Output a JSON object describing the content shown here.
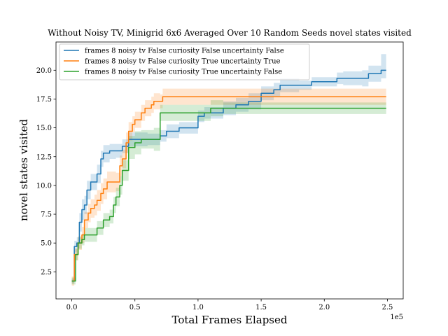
{
  "chart_data": {
    "type": "line",
    "title": "Without Noisy TV, Minigrid 6x6 Averaged Over 10 Random Seeds novel states visited",
    "xlabel": "Total Frames Elapsed",
    "ylabel": "novel states visited",
    "x_offset_label": "1e5",
    "xlim": [
      -0.125,
      2.625
    ],
    "ylim": [
      0.15,
      22.45
    ],
    "x_ticks": [
      0.0,
      0.5,
      1.0,
      1.5,
      2.0,
      2.5
    ],
    "x_tick_labels": [
      "0.0",
      "0.5",
      "1.0",
      "1.5",
      "2.0",
      "2.5"
    ],
    "y_ticks": [
      2.5,
      5.0,
      7.5,
      10.0,
      12.5,
      15.0,
      17.5,
      20.0
    ],
    "y_tick_labels": [
      "2.5",
      "5.0",
      "7.5",
      "10.0",
      "12.5",
      "15.0",
      "17.5",
      "20.0"
    ],
    "grid": false,
    "legend_position": "top-left",
    "series": [
      {
        "name": "frames 8 noisy tv False curiosity False uncertainty False",
        "color": "#1f77b4",
        "x": [
          0.0,
          0.02,
          0.04,
          0.06,
          0.08,
          0.1,
          0.12,
          0.15,
          0.2,
          0.23,
          0.25,
          0.3,
          0.35,
          0.4,
          0.45,
          0.5,
          0.6,
          0.7,
          0.75,
          0.8,
          0.85,
          1.0,
          1.05,
          1.1,
          1.2,
          1.3,
          1.4,
          1.5,
          1.6,
          1.65,
          1.8,
          1.9,
          2.0,
          2.1,
          2.15,
          2.2,
          2.3,
          2.35,
          2.4,
          2.45,
          2.49
        ],
        "y": [
          1.7,
          4.7,
          5.0,
          6.8,
          7.9,
          8.3,
          9.6,
          10.3,
          11.0,
          12.3,
          12.8,
          13.0,
          13.0,
          13.4,
          14.0,
          14.0,
          14.0,
          14.3,
          14.7,
          14.7,
          15.0,
          16.0,
          16.3,
          16.3,
          16.7,
          17.0,
          17.3,
          18.0,
          18.3,
          18.7,
          18.7,
          19.0,
          19.0,
          19.3,
          19.3,
          19.3,
          19.3,
          19.7,
          19.7,
          20.0,
          20.0
        ],
        "lower": [
          1.5,
          4.2,
          4.5,
          6.0,
          7.0,
          7.5,
          8.8,
          9.6,
          10.2,
          11.6,
          12.0,
          12.3,
          12.4,
          12.8,
          13.4,
          13.4,
          13.5,
          13.8,
          14.1,
          14.1,
          14.5,
          15.5,
          15.8,
          15.8,
          16.1,
          16.4,
          16.6,
          17.4,
          17.7,
          18.1,
          18.3,
          18.6,
          18.6,
          18.8,
          18.7,
          18.7,
          18.6,
          19.0,
          19.0,
          19.3,
          19.3
        ],
        "upper": [
          1.9,
          5.2,
          5.5,
          7.6,
          8.8,
          9.1,
          10.4,
          11.0,
          11.8,
          13.0,
          13.5,
          13.6,
          13.6,
          14.0,
          14.6,
          14.6,
          14.5,
          14.8,
          15.3,
          15.3,
          15.5,
          16.5,
          16.8,
          16.8,
          17.3,
          17.6,
          18.0,
          18.6,
          18.9,
          19.3,
          19.1,
          19.4,
          19.4,
          19.8,
          19.9,
          19.9,
          20.0,
          20.4,
          20.4,
          21.4,
          21.4
        ]
      },
      {
        "name": "frames 8 noisy tv False curiosity True uncertainty True",
        "color": "#ff7f0e",
        "x": [
          0.0,
          0.02,
          0.05,
          0.08,
          0.1,
          0.13,
          0.15,
          0.18,
          0.2,
          0.23,
          0.25,
          0.28,
          0.3,
          0.35,
          0.38,
          0.4,
          0.43,
          0.45,
          0.48,
          0.5,
          0.55,
          0.58,
          0.6,
          0.63,
          0.65,
          0.7,
          0.72,
          0.8,
          1.0,
          1.2,
          1.4,
          1.6,
          1.8,
          2.0,
          2.2,
          2.49
        ],
        "y": [
          1.7,
          4.0,
          5.0,
          5.7,
          7.0,
          7.6,
          8.0,
          8.3,
          8.7,
          9.3,
          9.7,
          10.3,
          10.3,
          10.3,
          11.7,
          12.3,
          13.7,
          14.7,
          15.3,
          15.7,
          16.3,
          16.7,
          16.7,
          17.0,
          17.3,
          17.3,
          17.7,
          17.7,
          17.7,
          17.7,
          17.7,
          17.7,
          17.7,
          17.7,
          17.7,
          17.7
        ],
        "lower": [
          1.3,
          3.5,
          4.4,
          5.0,
          6.3,
          6.8,
          7.2,
          7.4,
          7.8,
          8.4,
          8.8,
          9.4,
          9.4,
          9.5,
          10.8,
          11.5,
          12.8,
          13.9,
          14.6,
          15.0,
          15.6,
          16.0,
          16.0,
          16.3,
          16.6,
          16.7,
          17.0,
          17.0,
          17.0,
          17.0,
          17.0,
          17.0,
          17.0,
          17.0,
          17.0,
          17.0
        ],
        "upper": [
          2.1,
          4.5,
          5.6,
          6.4,
          7.7,
          8.4,
          8.8,
          9.2,
          9.6,
          10.2,
          10.6,
          11.2,
          11.2,
          11.1,
          12.6,
          13.1,
          14.6,
          15.5,
          16.0,
          16.4,
          17.0,
          17.4,
          17.4,
          17.7,
          18.0,
          17.9,
          18.4,
          18.4,
          18.4,
          18.4,
          18.4,
          18.4,
          18.4,
          18.4,
          18.4,
          18.4
        ]
      },
      {
        "name": "frames 8 noisy tv False curiosity True uncertainty False",
        "color": "#2ca02c",
        "x": [
          0.0,
          0.03,
          0.05,
          0.08,
          0.1,
          0.15,
          0.2,
          0.25,
          0.28,
          0.3,
          0.33,
          0.35,
          0.38,
          0.4,
          0.45,
          0.5,
          0.55,
          0.6,
          0.65,
          0.7,
          0.8,
          0.9,
          1.0,
          1.1,
          1.2,
          1.4,
          1.6,
          1.8,
          2.0,
          2.2,
          2.49
        ],
        "y": [
          1.7,
          4.0,
          5.0,
          5.3,
          5.7,
          5.7,
          6.3,
          7.0,
          7.0,
          7.3,
          8.3,
          9.0,
          10.0,
          11.3,
          13.3,
          13.7,
          14.0,
          14.0,
          14.0,
          16.3,
          16.3,
          16.3,
          16.3,
          16.7,
          16.7,
          16.7,
          16.7,
          16.7,
          16.7,
          16.7,
          16.7
        ],
        "lower": [
          1.4,
          3.5,
          4.5,
          4.8,
          5.1,
          5.1,
          5.7,
          6.4,
          6.4,
          6.7,
          7.6,
          8.2,
          9.2,
          10.4,
          12.3,
          12.7,
          13.2,
          13.2,
          13.0,
          15.6,
          15.6,
          15.6,
          15.6,
          16.0,
          16.2,
          16.2,
          16.2,
          16.2,
          16.2,
          16.2,
          16.2
        ],
        "upper": [
          2.0,
          4.5,
          5.5,
          5.8,
          6.3,
          6.3,
          6.9,
          7.6,
          7.6,
          7.9,
          9.0,
          9.8,
          10.8,
          12.2,
          14.3,
          14.7,
          14.8,
          14.8,
          15.0,
          17.0,
          17.0,
          17.0,
          17.0,
          17.4,
          17.2,
          17.2,
          17.2,
          17.2,
          17.2,
          17.2,
          17.2
        ]
      }
    ]
  }
}
